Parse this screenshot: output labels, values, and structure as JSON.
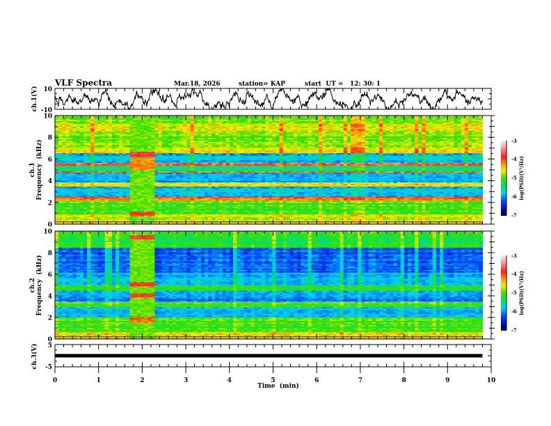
{
  "header": {
    "title": "VLF Spectra",
    "date": "Mar.18, 2026",
    "station": "station= KAP",
    "start": "start  UT =   12: 30: 1"
  },
  "colors": {
    "frame": "#000000",
    "trace": "#000000"
  },
  "chart_data": [
    {
      "type": "line",
      "name": "ch1-waveform",
      "ylabel": "ch.1(V)",
      "ylim": [
        -10,
        10
      ],
      "yticks": [
        "10",
        "-10"
      ],
      "xlim": [
        0,
        10
      ],
      "x_end": 9.8,
      "description_values": "noisy waveform oscillating roughly between -8 and 8 V"
    },
    {
      "type": "heatmap",
      "name": "ch1-spectrogram",
      "ylabel_1": "ch.1",
      "ylabel_2": "Frequency  (kHz)",
      "ylim": [
        0,
        10
      ],
      "yticks": [
        "0",
        "2",
        "4",
        "6",
        "8",
        "10"
      ],
      "xlim": [
        0,
        10
      ],
      "x_end": 9.8,
      "colorbar": {
        "label": "log(PSD)(V²/Hz)",
        "range": [
          -7,
          -3
        ],
        "ticks": [
          "-3",
          "-4",
          "-5",
          "-6",
          "-7"
        ]
      },
      "burst_interval_min": [
        1.7,
        2.25
      ]
    },
    {
      "type": "heatmap",
      "name": "ch2-spectrogram",
      "ylabel_1": "ch.2",
      "ylabel_2": "Frequency  (kHz)",
      "ylim": [
        0,
        10
      ],
      "yticks": [
        "0",
        "2",
        "4",
        "6",
        "8",
        "10"
      ],
      "xlim": [
        0,
        10
      ],
      "x_end": 9.8,
      "colorbar": {
        "label": "log(PSD)(V²/Hz)",
        "range": [
          -7,
          -3
        ],
        "ticks": [
          "-3",
          "-4",
          "-5",
          "-6",
          "-7"
        ]
      },
      "burst_interval_min": [
        1.7,
        2.25
      ]
    },
    {
      "type": "line",
      "name": "ch3-waveform",
      "ylabel": "ch.3(V)",
      "ylim": [
        -5,
        5
      ],
      "yticks": [
        "5",
        "0",
        "-5"
      ],
      "xlim": [
        0,
        10
      ],
      "x_end": 9.8,
      "level": 0,
      "xlabel": "Time  (min)",
      "xticks": [
        "0",
        "1",
        "2",
        "3",
        "4",
        "5",
        "6",
        "7",
        "8",
        "9",
        "10"
      ]
    }
  ]
}
